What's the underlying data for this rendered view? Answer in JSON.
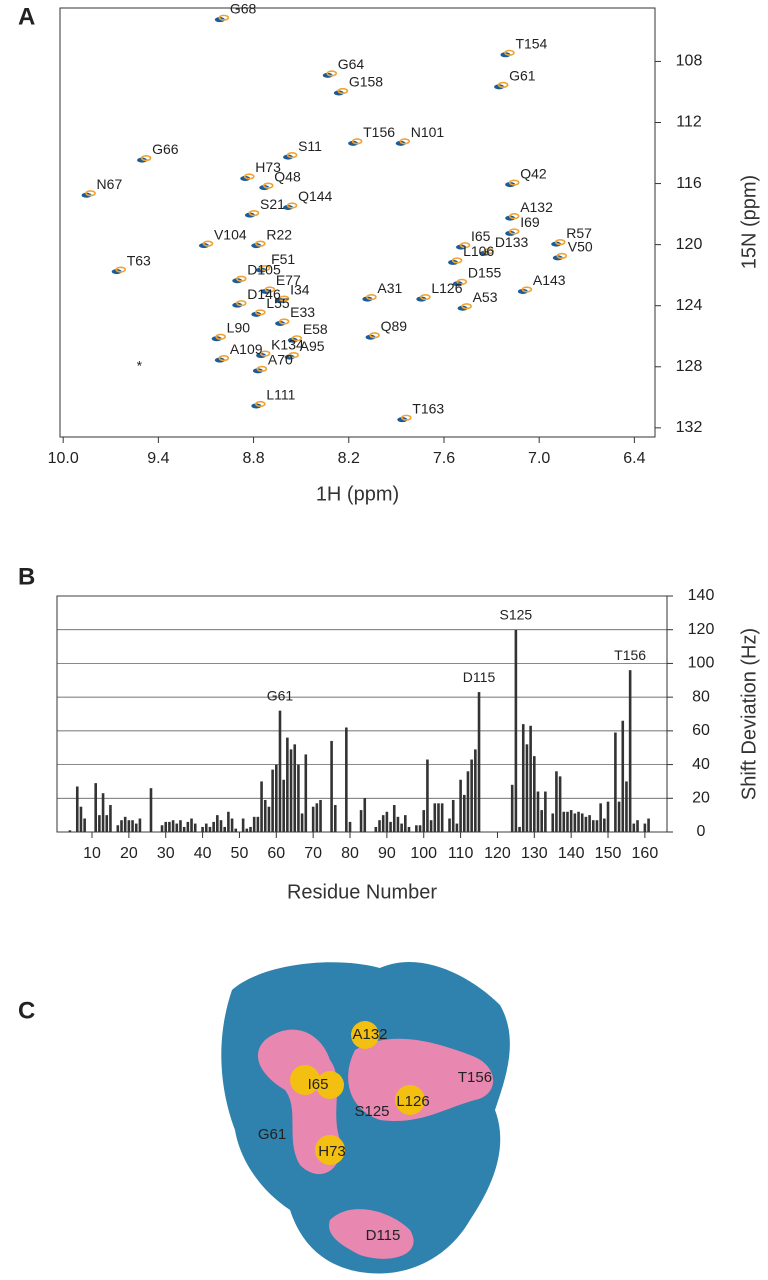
{
  "chart_data": [
    {
      "type": "scatter",
      "panel": "A",
      "xlabel": "1H (ppm)",
      "ylabel": "15N (ppm)",
      "xlim": [
        10.02,
        6.27
      ],
      "ylim": [
        104.5,
        132.6
      ],
      "xticks": [
        {
          "value": 10,
          "label": "10.0"
        },
        9.4,
        8.8,
        8.2,
        7.6,
        {
          "value": 7,
          "label": "7.0"
        },
        6.4
      ],
      "yticks": [
        108,
        112,
        116,
        120,
        124,
        128,
        132
      ],
      "colors": [
        "#1b5c98",
        "#f0a232"
      ],
      "labels": [
        "G68",
        "G64",
        "G158",
        "T154",
        "G61",
        "G66",
        "S11",
        "T156",
        "N101",
        "H73",
        "N67",
        "Q48",
        "Q42",
        "S21",
        "Q144",
        "A132",
        "I69",
        "R22",
        "V104",
        "R57",
        "I65",
        "D133",
        "L106",
        "V50",
        "T63",
        "F51",
        "D105",
        "E77",
        "I34",
        "D155",
        "A143",
        "A31",
        "L126",
        "D146",
        "L55",
        "A53",
        "E33",
        "L90",
        "E58",
        "Q89",
        "K134",
        "A95",
        "A109",
        "A70",
        "L111",
        "T163"
      ],
      "x": [
        9.0,
        8.32,
        8.25,
        7.2,
        7.24,
        9.49,
        8.57,
        8.16,
        7.86,
        8.84,
        9.84,
        8.72,
        7.17,
        8.81,
        8.57,
        7.17,
        7.17,
        8.77,
        9.1,
        6.88,
        7.48,
        7.33,
        7.53,
        6.87,
        9.65,
        8.74,
        8.89,
        8.71,
        8.62,
        7.5,
        7.09,
        8.07,
        7.73,
        8.89,
        8.77,
        7.47,
        8.62,
        9.02,
        8.54,
        8.05,
        8.74,
        8.56,
        9.0,
        8.76,
        8.77,
        7.85
      ],
      "y": [
        105.2,
        108.85,
        110.0,
        107.5,
        109.6,
        114.4,
        114.2,
        113.3,
        113.3,
        115.6,
        116.7,
        116.2,
        116.0,
        118.0,
        117.5,
        118.2,
        119.2,
        120.0,
        120.0,
        119.9,
        120.1,
        120.5,
        121.1,
        120.8,
        121.7,
        121.6,
        122.3,
        123.0,
        123.6,
        122.5,
        123.0,
        123.5,
        123.5,
        123.9,
        124.5,
        124.1,
        125.1,
        126.1,
        126.2,
        126.0,
        127.2,
        127.3,
        127.5,
        128.2,
        130.5,
        131.4
      ],
      "annotations": [
        {
          "text": "*",
          "x": 9.52,
          "y": 128.0
        }
      ]
    },
    {
      "type": "bar",
      "panel": "B",
      "xlabel": "Residue Number",
      "ylabel": "Shift Deviation (Hz)",
      "color": "#333333",
      "grid": true,
      "xlim": [
        0.5,
        166
      ],
      "ylim": [
        0,
        140
      ],
      "xticks": [
        10,
        20,
        30,
        40,
        50,
        60,
        70,
        80,
        90,
        100,
        110,
        120,
        130,
        140,
        150,
        160
      ],
      "yticks": [
        0,
        20,
        40,
        60,
        80,
        100,
        120,
        140
      ],
      "x": [
        4,
        6,
        7,
        8,
        11,
        12,
        13,
        14,
        15,
        17,
        18,
        19,
        20,
        21,
        22,
        23,
        26,
        29,
        30,
        31,
        32,
        33,
        34,
        35,
        36,
        37,
        38,
        40,
        41,
        42,
        43,
        44,
        45,
        46,
        47,
        48,
        49,
        51,
        52,
        53,
        54,
        55,
        56,
        57,
        58,
        59,
        60,
        61,
        62,
        63,
        64,
        65,
        66,
        67,
        68,
        70,
        71,
        72,
        75,
        76,
        79,
        80,
        83,
        84,
        87,
        88,
        89,
        90,
        91,
        92,
        93,
        94,
        95,
        96,
        98,
        99,
        100,
        101,
        102,
        103,
        104,
        105,
        107,
        108,
        109,
        110,
        111,
        112,
        113,
        114,
        115,
        124,
        125,
        126,
        127,
        128,
        129,
        130,
        131,
        132,
        133,
        135,
        136,
        137,
        138,
        139,
        140,
        141,
        142,
        143,
        144,
        145,
        146,
        147,
        148,
        149,
        150,
        152,
        153,
        154,
        155,
        156,
        157,
        158,
        160,
        161
      ],
      "values": [
        1,
        27,
        15,
        8,
        29,
        10,
        23,
        10,
        16,
        4,
        7,
        9,
        7,
        7,
        5,
        8,
        26,
        4,
        6,
        6,
        7,
        5,
        7,
        3,
        6,
        8,
        5,
        3,
        5,
        3,
        6,
        10,
        7,
        3,
        12,
        8,
        2,
        8,
        2,
        3,
        9,
        9,
        30,
        19,
        15,
        37,
        40,
        72,
        31,
        56,
        49,
        52,
        40,
        11,
        46,
        15,
        17,
        19,
        54,
        16,
        62,
        6,
        13,
        20,
        3,
        7,
        10,
        12,
        6,
        16,
        9,
        5,
        10,
        3,
        4,
        4,
        13,
        43,
        7,
        17,
        17,
        17,
        8,
        19,
        5,
        31,
        22,
        36,
        43,
        49,
        83,
        28,
        120,
        3,
        64,
        52,
        63,
        45,
        24,
        13,
        24,
        11,
        36,
        33,
        12,
        12,
        13,
        11,
        12,
        11,
        9,
        10,
        7,
        7,
        17,
        8,
        18,
        59,
        18,
        66,
        30,
        96,
        5,
        7,
        5,
        8
      ],
      "annotations": [
        {
          "text": "G61",
          "x": 61
        },
        {
          "text": "D115",
          "x": 115
        },
        {
          "text": "S125",
          "x": 125
        },
        {
          "text": "T156",
          "x": 156
        }
      ]
    }
  ],
  "panel_c": {
    "letter": "C",
    "labels": [
      "A132",
      "I65",
      "L126",
      "T156",
      "S125",
      "G61",
      "H73",
      "D115"
    ]
  }
}
